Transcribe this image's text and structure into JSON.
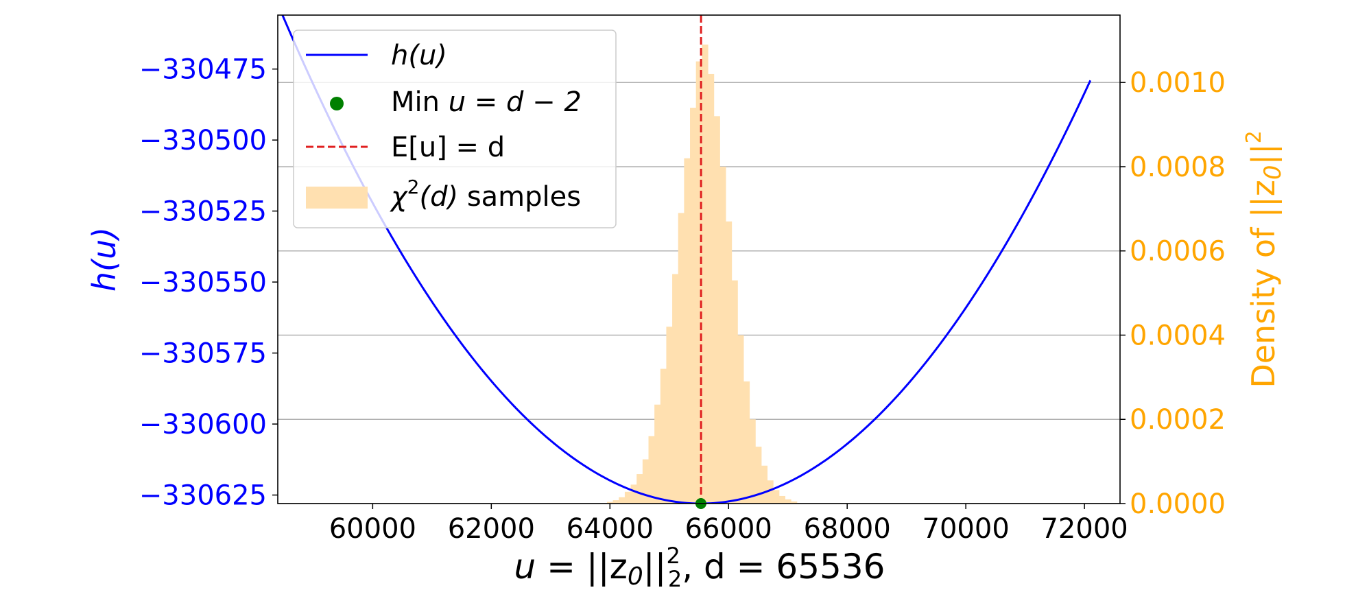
{
  "chart_data": {
    "type": "line",
    "xlabel": {
      "prefix": "u",
      "mid": " = ||z",
      "sub0": "0",
      "pipes": "||",
      "sup": "2",
      "sub": "2",
      "suffix": ", d = 65536"
    },
    "ylabel_left": "h(u)",
    "ylabel_right": {
      "text": "Density of ||z",
      "sub": "0",
      "end": "||",
      "sup": "2"
    },
    "xlim": [
      58400,
      72600
    ],
    "ylim_left": [
      -330628,
      -330456
    ],
    "ylim_right": [
      0,
      0.00116
    ],
    "x_ticks": [
      60000,
      62000,
      64000,
      66000,
      68000,
      70000,
      72000
    ],
    "x_tick_labels": [
      "60000",
      "62000",
      "64000",
      "66000",
      "68000",
      "70000",
      "72000"
    ],
    "y_left_ticks": [
      -330475,
      -330500,
      -330525,
      -330550,
      -330575,
      -330600,
      -330625
    ],
    "y_left_tick_labels": [
      "−330475",
      "−330500",
      "−330525",
      "−330550",
      "−330575",
      "−330600",
      "−330625"
    ],
    "y_right_ticks": [
      0.001,
      0.0008,
      0.0006,
      0.0004,
      0.0002,
      0.0
    ],
    "y_right_tick_labels": [
      "0.0010",
      "0.0008",
      "0.0006",
      "0.0004",
      "0.0002",
      "0.0000"
    ],
    "grid": "right-axis horizontal lines",
    "legend_position": "upper-left",
    "curve": {
      "name": "h(u)",
      "color": "#0000ff",
      "x_range": [
        58400,
        72100
      ],
      "min_x": 65534,
      "min_y": -330628,
      "points": [
        {
          "x": 59000,
          "y": -330457
        },
        {
          "x": 62000,
          "y": -330544
        },
        {
          "x": 65534,
          "y": -330628
        },
        {
          "x": 70000,
          "y": -330562
        },
        {
          "x": 72100,
          "y": -330479
        }
      ]
    },
    "min_point": {
      "label_prefix": "Min ",
      "label_math": "u = d − 2",
      "x": 65534,
      "y": -330628,
      "color": "#008000"
    },
    "mean_line": {
      "label": "E[u] = d",
      "x": 65536,
      "color": "#e02020"
    },
    "histogram": {
      "label_math": "χ",
      "label_sup": "2",
      "label_arg": "(d)",
      "label_rest": " samples",
      "color": "#ffe0b0",
      "bin_edges": [
        63950,
        64050,
        64150,
        64250,
        64350,
        64450,
        64550,
        64650,
        64750,
        64850,
        64950,
        65050,
        65150,
        65250,
        65350,
        65450,
        65550,
        65650,
        65750,
        65850,
        65950,
        66050,
        66150,
        66250,
        66350,
        66450,
        66550,
        66650,
        66750,
        66850,
        66950,
        67050,
        67150
      ],
      "densities": [
        4e-06,
        8e-06,
        1.5e-05,
        2.8e-05,
        4.5e-05,
        7e-05,
        0.000105,
        0.00016,
        0.000235,
        0.00032,
        0.00042,
        0.000545,
        0.00069,
        0.00082,
        0.00094,
        0.00105,
        0.00109,
        0.00102,
        0.00092,
        0.0008,
        0.00067,
        0.00053,
        0.0004,
        0.00029,
        0.0002,
        0.000135,
        9e-05,
        5.5e-05,
        3.2e-05,
        1.8e-05,
        1e-05,
        5e-06
      ]
    }
  }
}
